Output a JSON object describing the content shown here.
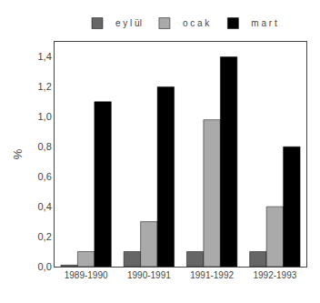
{
  "chart_data": {
    "type": "bar",
    "categories": [
      "1989-1990",
      "1990-1991",
      "1991-1992",
      "1992-1993"
    ],
    "series": [
      {
        "name": "e y l ül",
        "color": "#666666",
        "values": [
          0.01,
          0.1,
          0.1,
          0.1
        ]
      },
      {
        "name": "o c a k",
        "color": "#aaaaaa",
        "values": [
          0.1,
          0.3,
          0.98,
          0.4
        ]
      },
      {
        "name": "m a r t",
        "color": "#000000",
        "values": [
          1.1,
          1.2,
          1.4,
          0.8
        ]
      }
    ],
    "ylabel": "%",
    "ylim": [
      0,
      1.5
    ],
    "yticks": [
      {
        "value": 0.0,
        "label": "0,0"
      },
      {
        "value": 0.2,
        "label": "0,2"
      },
      {
        "value": 0.4,
        "label": "0,4"
      },
      {
        "value": 0.6,
        "label": "0,6"
      },
      {
        "value": 0.8,
        "label": "0,8"
      },
      {
        "value": 1.0,
        "label": "1,0"
      },
      {
        "value": 1.2,
        "label": "1,2"
      },
      {
        "value": 1.4,
        "label": "1,4"
      }
    ],
    "grid": false,
    "legend": "top"
  }
}
